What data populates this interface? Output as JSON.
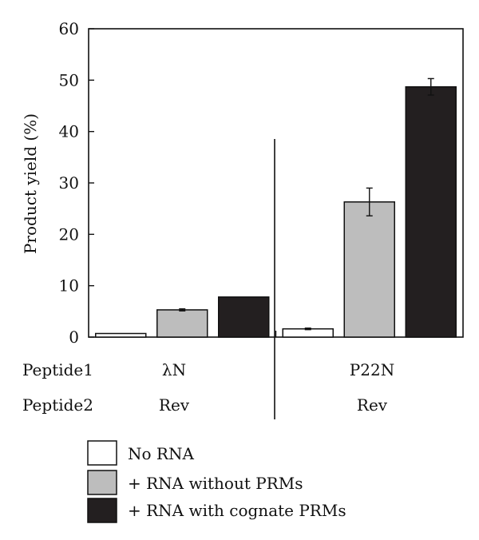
{
  "chart_data": {
    "type": "bar",
    "ylabel": "Product yield (%)",
    "ylim": [
      0,
      60
    ],
    "yticks": [
      0,
      10,
      20,
      30,
      40,
      50,
      60
    ],
    "grid": false,
    "row_labels": [
      "Peptide1",
      "Peptide2"
    ],
    "groups": [
      {
        "peptide1": "λN",
        "peptide2": "Rev"
      },
      {
        "peptide1": "P22N",
        "peptide2": "Rev"
      }
    ],
    "series": [
      {
        "name": "No RNA",
        "color": "#ffffff",
        "values": [
          0.7,
          1.6
        ],
        "errors": [
          0,
          0.15
        ]
      },
      {
        "name": "+ RNA without PRMs",
        "color": "#bdbdbd",
        "values": [
          5.3,
          26.3
        ],
        "errors": [
          0.2,
          2.7
        ]
      },
      {
        "name": "+ RNA with cognate PRMs",
        "color": "#231f20",
        "values": [
          7.8,
          48.7
        ],
        "errors": [
          0,
          1.6
        ]
      }
    ],
    "legend_position": "bottom-left"
  }
}
